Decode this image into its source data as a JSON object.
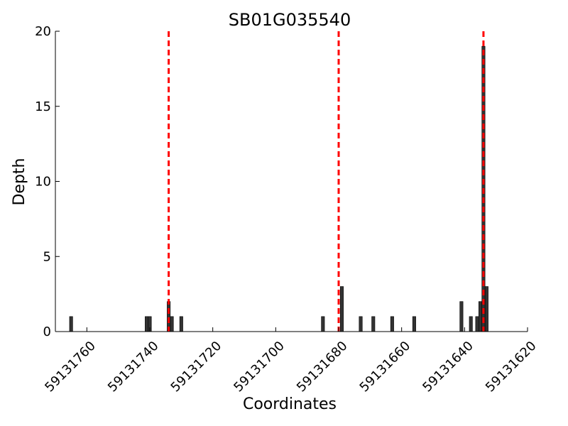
{
  "chart_data": {
    "type": "bar",
    "title": "SB01G035540",
    "xlabel": "Coordinates",
    "ylabel": "Depth",
    "xlim": [
      59131770,
      59131620
    ],
    "ylim": [
      0,
      20
    ],
    "x_ticks": [
      59131760,
      59131740,
      59131720,
      59131700,
      59131680,
      59131660,
      59131640,
      59131620
    ],
    "y_ticks": [
      0,
      5,
      10,
      15,
      20
    ],
    "grid": false,
    "legend": "none",
    "bar_color": "#333333",
    "bars": [
      {
        "x": 59131765,
        "y": 1
      },
      {
        "x": 59131741,
        "y": 1
      },
      {
        "x": 59131740,
        "y": 1
      },
      {
        "x": 59131734,
        "y": 2
      },
      {
        "x": 59131733,
        "y": 1
      },
      {
        "x": 59131730,
        "y": 1
      },
      {
        "x": 59131685,
        "y": 1
      },
      {
        "x": 59131679,
        "y": 3
      },
      {
        "x": 59131673,
        "y": 1
      },
      {
        "x": 59131669,
        "y": 1
      },
      {
        "x": 59131663,
        "y": 1
      },
      {
        "x": 59131656,
        "y": 1
      },
      {
        "x": 59131641,
        "y": 2
      },
      {
        "x": 59131638,
        "y": 1
      },
      {
        "x": 59131636,
        "y": 1
      },
      {
        "x": 59131635,
        "y": 2
      },
      {
        "x": 59131634,
        "y": 19
      },
      {
        "x": 59131633,
        "y": 3
      }
    ],
    "marker_line_color": "#ff0000",
    "marker_lines": [
      59131734,
      59131680,
      59131634
    ]
  }
}
